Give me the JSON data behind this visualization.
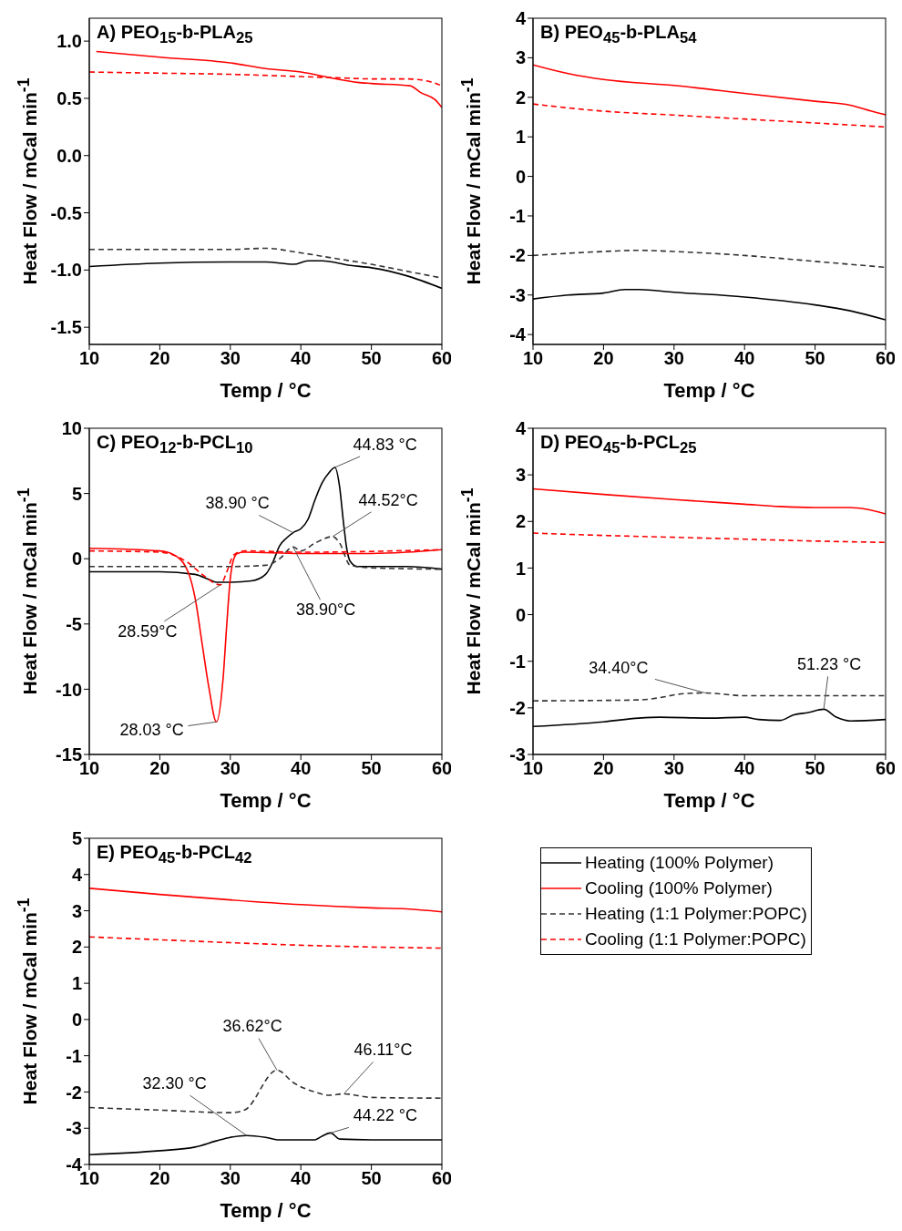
{
  "chart_data": [
    {
      "type": "line",
      "title": "A) PEO$_{15}$-b-PLA$_{25}$",
      "xlabel": "Temp / °C",
      "ylabel": "Heat Flow / mCal min$^{-1}$",
      "xlim": [
        10,
        60
      ],
      "xticks": [
        10,
        20,
        30,
        40,
        50,
        60
      ],
      "ylim": [
        -1.65,
        1.2
      ],
      "yticks": [
        -1.5,
        {
          "value": -1,
          "label": "-1.0"
        },
        -0.5,
        {
          "value": 0,
          "label": "0.0"
        },
        0.5,
        {
          "value": 1,
          "label": "1.0"
        }
      ],
      "series": [
        {
          "color": "#000000",
          "line_style": "solid",
          "x": [
            10,
            20,
            30,
            35,
            39,
            41,
            43,
            47,
            50,
            55,
            60
          ],
          "values": [
            -0.97,
            -0.94,
            -0.93,
            -0.93,
            -0.95,
            -0.92,
            -0.92,
            -0.96,
            -0.98,
            -1.05,
            -1.16
          ]
        },
        {
          "color": "#ff0000",
          "line_style": "solid",
          "x": [
            11,
            20,
            30,
            35,
            40,
            45,
            48,
            50,
            55.5,
            57,
            59,
            60
          ],
          "values": [
            0.91,
            0.86,
            0.81,
            0.76,
            0.73,
            0.67,
            0.64,
            0.63,
            0.61,
            0.55,
            0.49,
            0.42
          ]
        },
        {
          "color": "#333333",
          "line_style": "dashed",
          "x": [
            10,
            20,
            30,
            35,
            40,
            45,
            50,
            55,
            60
          ],
          "values": [
            -0.82,
            -0.82,
            -0.82,
            -0.81,
            -0.85,
            -0.9,
            -0.95,
            -1.01,
            -1.07
          ]
        },
        {
          "color": "#ff0000",
          "line_style": "dashed",
          "x": [
            10,
            20,
            30,
            40,
            45,
            50,
            55,
            58,
            60
          ],
          "values": [
            0.73,
            0.72,
            0.71,
            0.69,
            0.68,
            0.67,
            0.67,
            0.65,
            0.61
          ]
        }
      ]
    },
    {
      "type": "line",
      "title": "B) PEO$_{45}$-b-PLA$_{54}$",
      "xlabel": "Temp / °C",
      "ylabel": "Heat Flow / mCal min$^{-1}$",
      "xlim": [
        10,
        60
      ],
      "xticks": [
        10,
        20,
        30,
        40,
        50,
        60
      ],
      "ylim": [
        -4.25,
        4
      ],
      "yticks": [
        -4,
        -3,
        -2,
        -1,
        0,
        1,
        2,
        3,
        4
      ],
      "series": [
        {
          "color": "#000000",
          "line_style": "solid",
          "x": [
            10,
            15,
            20,
            23,
            25,
            30,
            40,
            50,
            55,
            60
          ],
          "values": [
            -3.1,
            -3.0,
            -2.95,
            -2.86,
            -2.86,
            -2.93,
            -3.05,
            -3.25,
            -3.4,
            -3.63
          ]
        },
        {
          "color": "#ff0000",
          "line_style": "solid",
          "x": [
            10,
            15,
            20,
            30,
            40,
            50,
            55,
            58,
            60
          ],
          "values": [
            2.82,
            2.6,
            2.45,
            2.3,
            2.1,
            1.9,
            1.8,
            1.65,
            1.56
          ]
        },
        {
          "color": "#333333",
          "line_style": "dashed",
          "x": [
            10,
            20,
            25,
            30,
            40,
            50,
            60
          ],
          "values": [
            -2.0,
            -1.9,
            -1.87,
            -1.9,
            -2.0,
            -2.15,
            -2.3
          ]
        },
        {
          "color": "#ff0000",
          "line_style": "dashed",
          "x": [
            10,
            20,
            30,
            40,
            50,
            60
          ],
          "values": [
            1.83,
            1.65,
            1.55,
            1.45,
            1.35,
            1.25
          ]
        }
      ]
    },
    {
      "type": "line",
      "title": "C) PEO$_{12}$-b-PCL$_{10}$",
      "xlabel": "Temp / °C",
      "ylabel": "Heat Flow / mCal min$^{-1}$",
      "xlim": [
        10,
        60
      ],
      "xticks": [
        10,
        20,
        30,
        40,
        50,
        60
      ],
      "ylim": [
        -15,
        10
      ],
      "yticks": [
        -15,
        -10,
        -5,
        0,
        5,
        10
      ],
      "series": [
        {
          "color": "#000000",
          "line_style": "solid",
          "x": [
            10,
            20,
            25,
            27,
            28,
            30,
            33,
            35,
            36,
            37,
            38,
            38.9,
            40,
            41,
            42,
            43,
            44,
            44.83,
            45.5,
            46,
            46.5,
            47,
            48,
            50,
            55,
            60
          ],
          "values": [
            -1.0,
            -1.0,
            -1.2,
            -1.6,
            -1.8,
            -1.8,
            -1.7,
            -1.2,
            -0.3,
            1.0,
            1.6,
            2.0,
            2.3,
            3.0,
            4.5,
            5.8,
            6.6,
            7.0,
            5.5,
            3.0,
            0.8,
            -0.2,
            -0.6,
            -0.6,
            -0.6,
            -0.8
          ]
        },
        {
          "color": "#ff0000",
          "line_style": "solid",
          "x": [
            10,
            20,
            22,
            24,
            25,
            26,
            27,
            28.03,
            29,
            29.5,
            30,
            30.5,
            31,
            32,
            40,
            50,
            55,
            60
          ],
          "values": [
            0.8,
            0.6,
            0.3,
            -1.0,
            -3,
            -6.5,
            -10,
            -12.5,
            -9,
            -5,
            -1.5,
            0.0,
            0.4,
            0.5,
            0.4,
            0.4,
            0.5,
            0.7
          ]
        },
        {
          "color": "#333333",
          "line_style": "dashed",
          "x": [
            10,
            30,
            35,
            37,
            38.9,
            40,
            42,
            44.52,
            45.5,
            47,
            50,
            60
          ],
          "values": [
            -0.6,
            -0.6,
            -0.5,
            0,
            0.9,
            0.6,
            1.2,
            1.7,
            1.2,
            -0.5,
            -0.7,
            -0.8
          ]
        },
        {
          "color": "#ff0000",
          "line_style": "dashed",
          "x": [
            10,
            20,
            24,
            26,
            28.59,
            29.5,
            30.5,
            32,
            40,
            60
          ],
          "values": [
            0.6,
            0.5,
            -0.3,
            -1.2,
            -2.0,
            -1.0,
            0.3,
            0.6,
            0.5,
            0.7
          ]
        }
      ],
      "annotations": [
        {
          "text": "44.83 °C",
          "x": 44.83,
          "y": 7.0
        },
        {
          "text": "38.90 °C",
          "x": 38.9,
          "y": 2.0
        },
        {
          "text": "44.52°C",
          "x": 44.52,
          "y": 1.7
        },
        {
          "text": "38.90°C",
          "x": 38.9,
          "y": 0.9
        },
        {
          "text": "28.59°C",
          "x": 28.59,
          "y": -2.0
        },
        {
          "text": "28.03 °C",
          "x": 28.03,
          "y": -12.5
        }
      ]
    },
    {
      "type": "line",
      "title": "D) PEO$_{45}$-b-PCL$_{25}$",
      "xlabel": "Temp / °C",
      "ylabel": "Heat Flow / mCal min$^{-1}$",
      "xlim": [
        10,
        60
      ],
      "xticks": [
        10,
        20,
        30,
        40,
        50,
        60
      ],
      "ylim": [
        -3,
        4
      ],
      "yticks": [
        -3,
        -2,
        -1,
        0,
        1,
        2,
        3,
        4
      ],
      "series": [
        {
          "color": "#000000",
          "line_style": "solid",
          "x": [
            10,
            20,
            25,
            28,
            35,
            40,
            42,
            45,
            47,
            49,
            51.23,
            53,
            55,
            60
          ],
          "values": [
            -2.4,
            -2.3,
            -2.22,
            -2.2,
            -2.22,
            -2.2,
            -2.25,
            -2.27,
            -2.15,
            -2.1,
            -2.03,
            -2.2,
            -2.28,
            -2.25
          ]
        },
        {
          "color": "#ff0000",
          "line_style": "solid",
          "x": [
            10,
            20,
            30,
            40,
            45,
            50,
            55,
            57,
            60
          ],
          "values": [
            2.7,
            2.58,
            2.47,
            2.37,
            2.32,
            2.3,
            2.3,
            2.27,
            2.16
          ]
        },
        {
          "color": "#333333",
          "line_style": "dashed",
          "x": [
            10,
            20,
            25,
            28,
            31,
            34.4,
            40,
            60
          ],
          "values": [
            -1.85,
            -1.84,
            -1.83,
            -1.78,
            -1.7,
            -1.68,
            -1.74,
            -1.74
          ]
        },
        {
          "color": "#ff0000",
          "line_style": "dashed",
          "x": [
            10,
            20,
            30,
            40,
            50,
            60
          ],
          "values": [
            1.75,
            1.7,
            1.66,
            1.62,
            1.58,
            1.55
          ]
        }
      ],
      "annotations": [
        {
          "text": "34.40°C",
          "x": 34.4,
          "y": -1.68
        },
        {
          "text": "51.23 °C",
          "x": 51.23,
          "y": -2.03
        }
      ]
    },
    {
      "type": "line",
      "title": "E) PEO$_{45}$-b-PCL$_{42}$",
      "xlabel": "Temp / °C",
      "ylabel": "Heat Flow / mCal min$^{-1}$",
      "xlim": [
        10,
        60
      ],
      "xticks": [
        10,
        20,
        30,
        40,
        50,
        60
      ],
      "ylim": [
        -4,
        5
      ],
      "yticks": [
        -4,
        -3,
        -2,
        -1,
        0,
        1,
        2,
        3,
        4,
        5
      ],
      "legend": "right",
      "series": [
        {
          "name": "Heating (100% Polymer)",
          "color": "#000000",
          "line_style": "solid",
          "x": [
            10,
            20,
            25,
            28,
            30,
            32.3,
            35,
            37,
            42,
            43,
            44.22,
            45.5,
            50,
            60
          ],
          "values": [
            -3.73,
            -3.62,
            -3.52,
            -3.35,
            -3.25,
            -3.2,
            -3.25,
            -3.32,
            -3.32,
            -3.22,
            -3.13,
            -3.3,
            -3.32,
            -3.32
          ]
        },
        {
          "name": "Cooling (100% Polymer)",
          "color": "#ff0000",
          "line_style": "solid",
          "x": [
            10,
            20,
            30,
            40,
            50,
            55,
            60
          ],
          "values": [
            3.62,
            3.45,
            3.3,
            3.17,
            3.08,
            3.05,
            2.97
          ]
        },
        {
          "name": "Heating (1:1 Polymer:POPC)",
          "color": "#333333",
          "line_style": "dashed",
          "x": [
            10,
            20,
            30,
            32,
            36.62,
            39,
            42,
            44,
            46.11,
            50,
            60
          ],
          "values": [
            -2.43,
            -2.5,
            -2.57,
            -2.5,
            -1.4,
            -1.75,
            -2.0,
            -2.09,
            -2.05,
            -2.15,
            -2.17
          ]
        },
        {
          "name": "Cooling (1:1 Polymer:POPC)",
          "color": "#ff0000",
          "line_style": "dashed",
          "x": [
            10,
            20,
            30,
            40,
            50,
            60
          ],
          "values": [
            2.28,
            2.2,
            2.12,
            2.05,
            2.0,
            1.97
          ]
        }
      ],
      "annotations": [
        {
          "text": "36.62°C",
          "x": 36.62,
          "y": -1.4
        },
        {
          "text": "46.11°C",
          "x": 46.11,
          "y": -2.05
        },
        {
          "text": "32.30 °C",
          "x": 32.3,
          "y": -3.2
        },
        {
          "text": "44.22 °C",
          "x": 44.22,
          "y": -3.13
        }
      ]
    }
  ]
}
